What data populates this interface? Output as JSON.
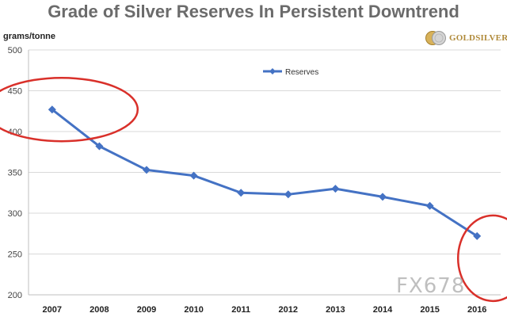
{
  "header": {
    "title": "Grade of Silver Reserves In Persistent Downtrend",
    "unit_label": "grams/tonne"
  },
  "logo": {
    "text": "GOLDSILVER"
  },
  "watermark": {
    "text": "FX678"
  },
  "chart_data": {
    "type": "line",
    "title": "Grade of Silver Reserves In Persistent Downtrend",
    "xlabel": "",
    "ylabel": "grams/tonne",
    "categories": [
      "2007",
      "2008",
      "2009",
      "2010",
      "2011",
      "2012",
      "2013",
      "2014",
      "2015",
      "2016"
    ],
    "series": [
      {
        "name": "Reserves",
        "values": [
          427,
          382,
          353,
          346,
          325,
          323,
          330,
          320,
          309,
          272
        ],
        "color": "#4472c4",
        "marker": "diamond"
      }
    ],
    "ylim": [
      200,
      500
    ],
    "yticks": [
      200,
      250,
      300,
      350,
      400,
      450,
      500
    ],
    "grid": true,
    "legend": "top-center",
    "annotation_color": "#d9302a"
  }
}
